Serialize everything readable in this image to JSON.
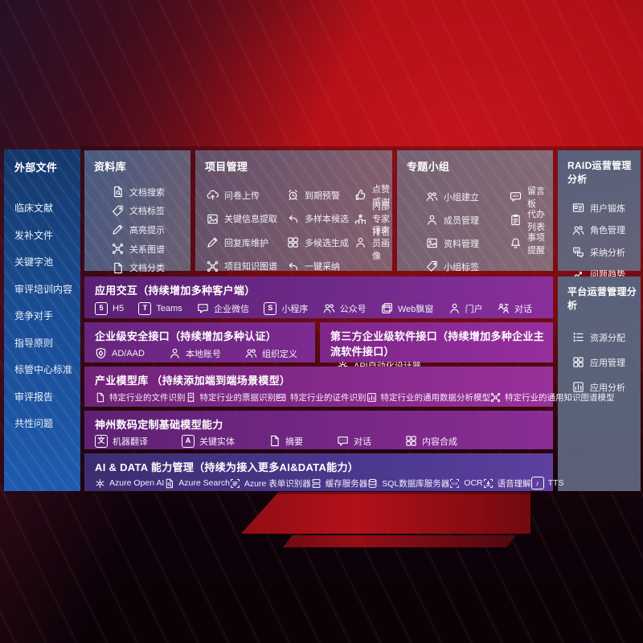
{
  "colors": {
    "background_red": "#b01016",
    "background_dark_corner": "#241027",
    "bottom_dark": "#0b0208",
    "sidebar_blue": "#1a4c92",
    "panel_slate": "#5c6a82",
    "row_purple": "#7c2b90",
    "row_magenta": "#99309a",
    "row_indigo": "#4e3a93",
    "text": "#ffffff"
  },
  "sidebar": {
    "title": "外部文件",
    "items": [
      "临床文献",
      "发补文件",
      "关键字池",
      "审评培训内容",
      "竞争对手",
      "指导原则",
      "标管中心标准",
      "审评报告",
      "共性问题"
    ]
  },
  "library": {
    "title": "资料库",
    "items": [
      {
        "label": "文档搜索",
        "icon": "doc-search"
      },
      {
        "label": "文档标签",
        "icon": "tag"
      },
      {
        "label": "高亮提示",
        "icon": "pen"
      },
      {
        "label": "关系图谱",
        "icon": "network"
      },
      {
        "label": "文档分类",
        "icon": "doc"
      }
    ]
  },
  "project": {
    "title": "项目管理",
    "items": [
      {
        "label": "问卷上传",
        "icon": "cloud-upload"
      },
      {
        "label": "到期预警",
        "icon": "alarm"
      },
      {
        "label": "点赞感谢",
        "icon": "thumbs-up"
      },
      {
        "label": "关键信息提取",
        "icon": "image"
      },
      {
        "label": "多样本候选",
        "icon": "reply-arrow"
      },
      {
        "label": "内部专家排名",
        "icon": "ranking"
      },
      {
        "label": "回复库维护",
        "icon": "pen"
      },
      {
        "label": "多候选生成",
        "icon": "grid"
      },
      {
        "label": "评审员画像",
        "icon": "person"
      },
      {
        "label": "项目知识图谱",
        "icon": "network"
      },
      {
        "label": "一键采纳",
        "icon": "reply-arrow"
      }
    ]
  },
  "group": {
    "title": "专题小组",
    "items": [
      {
        "label": "小组建立",
        "icon": "people"
      },
      {
        "label": "留言板",
        "icon": "bbs"
      },
      {
        "label": "成员管理",
        "icon": "person"
      },
      {
        "label": "代办列表",
        "icon": "clipboard"
      },
      {
        "label": "资料管理",
        "icon": "image"
      },
      {
        "label": "事项提醒",
        "icon": "bell"
      },
      {
        "label": "小组标签",
        "icon": "tag"
      }
    ]
  },
  "raid": {
    "title": "RAID运营管理分析",
    "items": [
      {
        "label": "用户锻炼",
        "icon": "id-card"
      },
      {
        "label": "角色管理",
        "icon": "people"
      },
      {
        "label": "采纳分析",
        "icon": "chat-qa"
      },
      {
        "label": "问题趋势",
        "icon": "trend-chart"
      }
    ]
  },
  "platform": {
    "title": "平台运营管理分析",
    "items": [
      {
        "label": "资源分配",
        "icon": "list"
      },
      {
        "label": "应用管理",
        "icon": "grid"
      },
      {
        "label": "应用分析",
        "icon": "chart-box"
      }
    ]
  },
  "interaction": {
    "title": "应用交互（持续增加多种客户端）",
    "items": [
      {
        "label": "H5",
        "icon": "h5",
        "glyph": "5"
      },
      {
        "label": "Teams",
        "icon": "teams",
        "glyph": "T"
      },
      {
        "label": "企业微信",
        "icon": "chat"
      },
      {
        "label": "小程序",
        "icon": "miniprogram",
        "glyph": "S"
      },
      {
        "label": "公众号",
        "icon": "people"
      },
      {
        "label": "Web飘窗",
        "icon": "window"
      },
      {
        "label": "门户",
        "icon": "person"
      },
      {
        "label": "对话",
        "icon": "chat-people"
      }
    ]
  },
  "security": {
    "title": "企业级安全接口（持续增加多种认证）",
    "items": [
      {
        "label": "AD/AAD",
        "icon": "shield"
      },
      {
        "label": "本地账号",
        "icon": "person"
      },
      {
        "label": "组织定义",
        "icon": "people"
      }
    ]
  },
  "thirdparty": {
    "title": "第三方企业级软件接口（持续增加多种企业主流软件接口）",
    "items": [
      {
        "label": "API自动化设计器",
        "icon": "gear"
      }
    ]
  },
  "models": {
    "title": "产业模型库 （持续添加端到端场景模型）",
    "items": [
      {
        "label": "特定行业的文件识别",
        "icon": "doc"
      },
      {
        "label": "特定行业的票据识别",
        "icon": "receipt"
      },
      {
        "label": "特定行业的证件识别",
        "icon": "id-card"
      },
      {
        "label": "特定行业的通用数据分析模型",
        "icon": "chart-box"
      },
      {
        "label": "特定行业的通用知识图谱模型",
        "icon": "network"
      }
    ]
  },
  "foundation": {
    "title": "神州数码定制基础模型能力",
    "items": [
      {
        "label": "机器翻译",
        "icon": "translate",
        "glyph": "文"
      },
      {
        "label": "关键实体",
        "icon": "entity-shield",
        "glyph": "A"
      },
      {
        "label": "摘要",
        "icon": "doc"
      },
      {
        "label": "对话",
        "icon": "chat"
      },
      {
        "label": "内容合成",
        "icon": "grid"
      }
    ]
  },
  "aidata": {
    "title": "AI & DATA 能力管理（持续为接入更多AI&DATA能力）",
    "items": [
      {
        "label": "Azure Open AI",
        "icon": "openai"
      },
      {
        "label": "Azure Search",
        "icon": "doc-search"
      },
      {
        "label": "Azure 表单识别器",
        "icon": "form"
      },
      {
        "label": "缓存服务器",
        "icon": "server"
      },
      {
        "label": "SQL数据库服务器",
        "icon": "database"
      },
      {
        "label": "OCR",
        "icon": "ocr"
      },
      {
        "label": "语音理解",
        "icon": "voice"
      },
      {
        "label": "TTS",
        "icon": "tts",
        "glyph": "♪"
      }
    ]
  }
}
